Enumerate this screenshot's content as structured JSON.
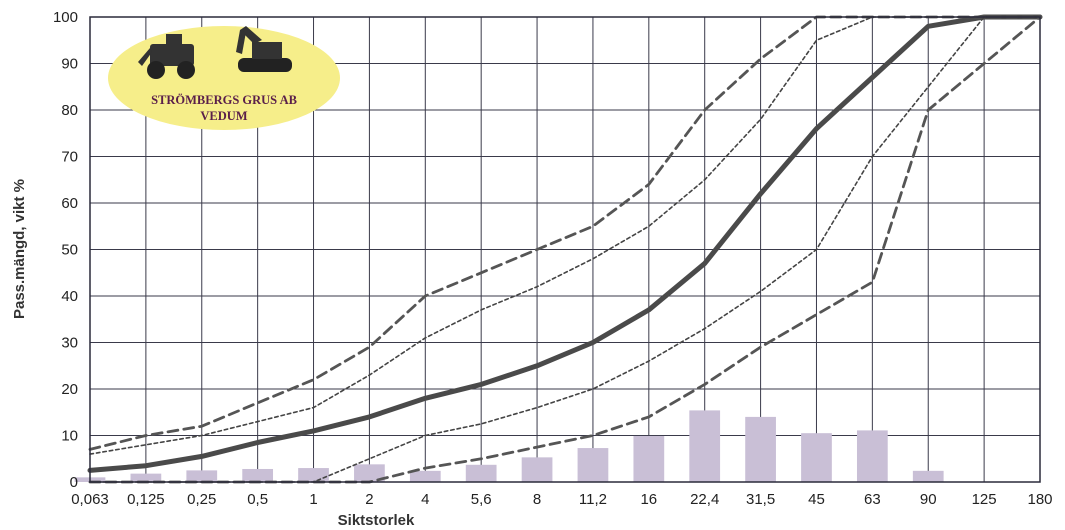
{
  "chart_data": {
    "type": "line",
    "xlabel": "Siktstorlek",
    "ylabel": "Pass.mängd, vikt %",
    "categories": [
      "0,063",
      "0,125",
      "0,25",
      "0,5",
      "1",
      "2",
      "4",
      "5,6",
      "8",
      "11,2",
      "16",
      "22,4",
      "31,5",
      "45",
      "63",
      "90",
      "125",
      "180"
    ],
    "ylim": [
      0,
      100
    ],
    "yticks": [
      0,
      10,
      20,
      30,
      40,
      50,
      60,
      70,
      80,
      90,
      100
    ],
    "grid": true,
    "series": [
      {
        "style": "solid-thick",
        "color": "#4a4a4a",
        "values": [
          2.5,
          3.5,
          5.5,
          8.5,
          11,
          14,
          18,
          21,
          25,
          30,
          37,
          47,
          62,
          76,
          87,
          98,
          100,
          100
        ]
      },
      {
        "style": "dashed",
        "color": "#555555",
        "values": [
          7,
          10,
          12,
          17,
          22,
          29,
          40,
          45,
          50,
          55,
          64,
          80,
          91,
          100,
          100,
          100,
          100,
          100
        ]
      },
      {
        "style": "dotted",
        "color": "#444444",
        "values": [
          6,
          8,
          10,
          13,
          16,
          23,
          31,
          37,
          42,
          48,
          55,
          65,
          78,
          95,
          100,
          100,
          100,
          100
        ]
      },
      {
        "style": "dotted",
        "color": "#444444",
        "values": [
          0,
          0,
          0,
          0,
          0,
          5,
          10,
          12.5,
          16,
          20,
          26,
          33,
          41,
          50,
          70,
          85,
          100,
          100
        ]
      },
      {
        "style": "dashed",
        "color": "#555555",
        "values": [
          0,
          0,
          0,
          0,
          0,
          0,
          3,
          5,
          7.5,
          10,
          14,
          21,
          29,
          36,
          43,
          80,
          90,
          100
        ]
      }
    ],
    "bars": {
      "color": "#c9bfd6",
      "values": [
        1,
        1.8,
        2.5,
        2.8,
        3,
        3.8,
        2.4,
        3.7,
        5.3,
        7.3,
        9.9,
        15.4,
        14,
        10.5,
        11.1,
        2.4,
        0,
        0
      ]
    }
  },
  "logo": {
    "line1": "STRÖMBERGS GRUS AB",
    "line2": "VEDUM",
    "fill": "#f6ee8a"
  }
}
